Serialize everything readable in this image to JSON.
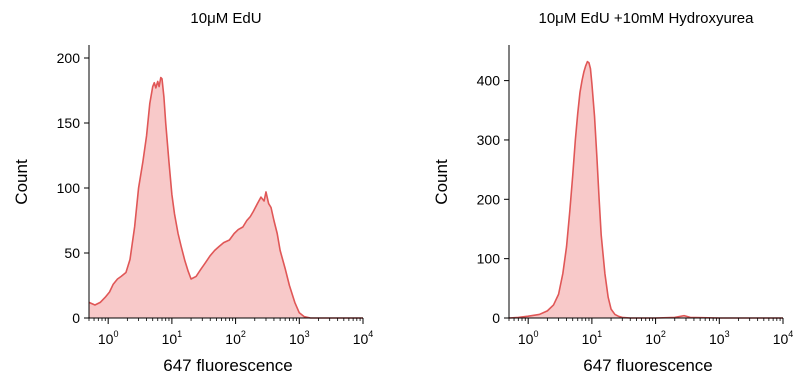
{
  "colors": {
    "fill": "#f8c9c9",
    "line": "#e05757",
    "axis": "#000000"
  },
  "chart_data": [
    {
      "type": "area",
      "title": "10μM EdU",
      "xlabel": "647 fluorescence",
      "ylabel": "Count",
      "xscale": "log",
      "xlim": [
        0.5,
        10000
      ],
      "ylim": [
        0,
        210
      ],
      "xticks": [
        {
          "base": "10",
          "exp": "0",
          "value": 1
        },
        {
          "base": "10",
          "exp": "1",
          "value": 10
        },
        {
          "base": "10",
          "exp": "2",
          "value": 100
        },
        {
          "base": "10",
          "exp": "3",
          "value": 1000
        },
        {
          "base": "10",
          "exp": "4",
          "value": 10000
        }
      ],
      "yticks": [
        {
          "label": "0",
          "value": 0
        },
        {
          "label": "50",
          "value": 50
        },
        {
          "label": "100",
          "value": 100
        },
        {
          "label": "150",
          "value": 150
        },
        {
          "label": "200",
          "value": 200
        }
      ],
      "series": [
        {
          "x": [
            0.5,
            0.62,
            0.75,
            0.9,
            1.05,
            1.2,
            1.4,
            1.6,
            1.9,
            2.2,
            2.6,
            3.0,
            3.5,
            4.0,
            4.5,
            5.0,
            5.3,
            5.6,
            6.0,
            6.3,
            6.7,
            7.0,
            7.5,
            8.0,
            9.0,
            10.0,
            11.0,
            12.5,
            14.0,
            16.0,
            18.0,
            20.0,
            24.0,
            28.0,
            33.0,
            40.0,
            47.0,
            55.0,
            65.0,
            80.0,
            95.0,
            110.0,
            130.0,
            150.0,
            170.0,
            190.0,
            220.0,
            250.0,
            280.0,
            300.0,
            330.0,
            360.0,
            400.0,
            450.0,
            500.0,
            600.0,
            700.0,
            850.0,
            1000.0,
            1200.0,
            1500.0,
            2000.0,
            3000.0,
            5000.0,
            10000.0
          ],
          "y": [
            12,
            10,
            12,
            16,
            20,
            26,
            30,
            32,
            35,
            45,
            70,
            100,
            120,
            140,
            165,
            178,
            181,
            177,
            182,
            178,
            185,
            184,
            170,
            150,
            120,
            95,
            80,
            65,
            55,
            44,
            36,
            30,
            32,
            37,
            42,
            48,
            52,
            55,
            58,
            60,
            65,
            68,
            70,
            75,
            78,
            82,
            88,
            93,
            90,
            97,
            88,
            85,
            75,
            65,
            52,
            38,
            25,
            12,
            4,
            1,
            0,
            0,
            0,
            0,
            0
          ]
        }
      ]
    },
    {
      "type": "area",
      "title": "10μM EdU +10mM Hydroxyurea",
      "xlabel": "647 fluorescence",
      "ylabel": "Count",
      "xscale": "log",
      "xlim": [
        0.5,
        10000
      ],
      "ylim": [
        0,
        460
      ],
      "xticks": [
        {
          "base": "10",
          "exp": "0",
          "value": 1
        },
        {
          "base": "10",
          "exp": "1",
          "value": 10
        },
        {
          "base": "10",
          "exp": "2",
          "value": 100
        },
        {
          "base": "10",
          "exp": "3",
          "value": 1000
        },
        {
          "base": "10",
          "exp": "4",
          "value": 10000
        }
      ],
      "yticks": [
        {
          "label": "0",
          "value": 0
        },
        {
          "label": "100",
          "value": 100
        },
        {
          "label": "200",
          "value": 200
        },
        {
          "label": "300",
          "value": 300
        },
        {
          "label": "400",
          "value": 400
        }
      ],
      "series": [
        {
          "x": [
            0.5,
            0.7,
            1.0,
            1.5,
            2.0,
            2.5,
            3.0,
            3.5,
            4.0,
            4.5,
            5.0,
            5.5,
            6.0,
            6.5,
            7.0,
            7.5,
            8.0,
            8.5,
            9.0,
            9.5,
            10.0,
            11.0,
            12.0,
            13.0,
            14.0,
            16.0,
            18.0,
            20.0,
            23.0,
            26.0,
            30.0,
            40.0,
            60.0,
            100.0,
            200.0,
            280.0,
            350.0,
            1000.0,
            10000.0
          ],
          "y": [
            0,
            1,
            3,
            6,
            12,
            22,
            40,
            75,
            120,
            180,
            240,
            300,
            345,
            380,
            400,
            415,
            425,
            432,
            430,
            420,
            395,
            340,
            270,
            200,
            140,
            75,
            35,
            15,
            6,
            3,
            1,
            0,
            0,
            0,
            1,
            4,
            1,
            0,
            0
          ]
        }
      ]
    }
  ]
}
